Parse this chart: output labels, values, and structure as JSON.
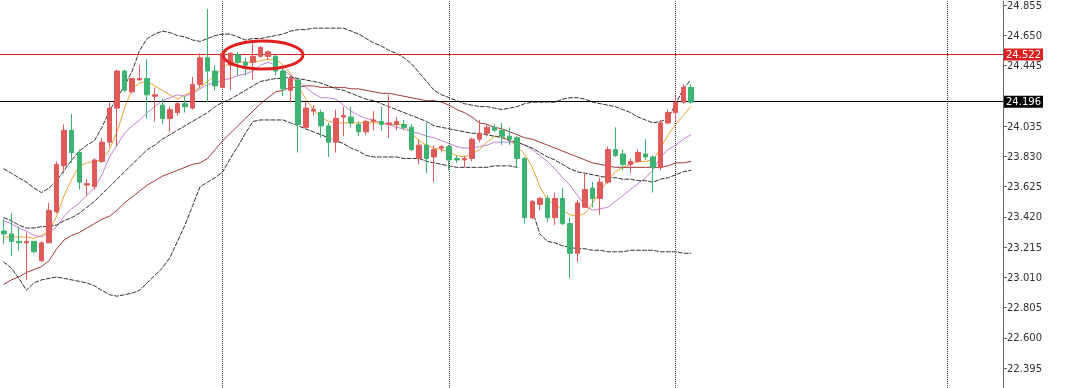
{
  "chart_data": {
    "type": "candlestick",
    "categories": [
      null,
      null,
      null,
      null,
      null,
      null,
      null,
      null,
      null,
      null,
      null,
      null,
      null,
      null,
      null,
      null,
      null,
      null,
      null,
      null,
      null,
      null,
      null,
      null,
      null,
      null,
      null,
      null,
      null,
      null,
      null,
      null,
      null,
      null,
      null,
      null,
      null,
      null,
      null,
      null,
      null,
      null,
      null,
      null,
      null,
      null,
      null,
      null,
      null,
      null,
      null,
      null,
      null,
      null,
      null,
      null,
      null,
      null,
      null,
      null,
      null,
      null,
      null,
      null,
      null,
      null,
      null,
      null,
      null,
      null,
      null,
      null,
      null,
      null,
      null,
      null,
      null,
      null,
      null,
      null,
      null,
      null,
      null,
      null,
      null,
      null,
      null,
      null,
      null,
      null,
      null,
      null
    ],
    "ylim": [
      22.26,
      24.88
    ],
    "yticks": [
      24.855,
      {
        "value": 24.65,
        "label": "24.650"
      },
      24.445,
      24.035,
      {
        "value": 23.83,
        "label": "23.830"
      },
      23.625,
      {
        "value": 23.42,
        "label": "23.420"
      },
      23.215,
      {
        "value": 23.01,
        "label": "23.010"
      },
      22.805,
      {
        "value": 22.6,
        "label": "22.600"
      },
      22.395
    ],
    "tick_labels": "y",
    "marker": "none",
    "series": [
      {
        "ohlc": [
          [
            23.32,
            23.4,
            23.23,
            23.3
          ],
          [
            23.3,
            23.44,
            23.15,
            23.25
          ],
          [
            23.25,
            23.35,
            23.19,
            23.24
          ],
          [
            23.24,
            23.31,
            22.99,
            23.25
          ],
          [
            23.25,
            23.25,
            23.17,
            23.18
          ],
          [
            23.12,
            23.25,
            23.11,
            23.24
          ],
          [
            23.24,
            23.51,
            23.24,
            23.46
          ],
          [
            23.45,
            23.79,
            23.44,
            23.77
          ],
          [
            23.76,
            24.04,
            23.71,
            24.0
          ],
          [
            24.0,
            24.11,
            23.78,
            23.85
          ],
          [
            23.85,
            23.87,
            23.6,
            23.65
          ],
          [
            23.63,
            23.67,
            23.56,
            23.64
          ],
          [
            23.62,
            23.81,
            23.6,
            23.8
          ],
          [
            23.79,
            23.95,
            23.78,
            23.92
          ],
          [
            23.92,
            24.19,
            23.89,
            24.15
          ],
          [
            24.15,
            24.41,
            23.89,
            24.4
          ],
          [
            24.4,
            24.41,
            24.26,
            24.27
          ],
          [
            24.26,
            24.35,
            24.25,
            24.35
          ],
          [
            24.34,
            24.44,
            24.34,
            24.35
          ],
          [
            24.35,
            24.48,
            24.08,
            24.24
          ],
          [
            24.23,
            24.29,
            24.06,
            24.24
          ],
          [
            24.17,
            24.21,
            24.04,
            24.08
          ],
          [
            24.08,
            24.16,
            23.99,
            24.14
          ],
          [
            24.12,
            24.19,
            24.1,
            24.18
          ],
          [
            24.18,
            24.23,
            24.12,
            24.16
          ],
          [
            24.15,
            24.36,
            24.14,
            24.31
          ],
          [
            24.31,
            24.52,
            24.29,
            24.49
          ],
          [
            24.49,
            24.82,
            24.19,
            24.4
          ],
          [
            24.4,
            24.44,
            24.27,
            24.3
          ],
          [
            24.29,
            24.54,
            24.29,
            24.52
          ],
          [
            24.44,
            24.53,
            24.27,
            24.52
          ],
          [
            24.51,
            24.53,
            24.37,
            24.46
          ],
          [
            24.46,
            24.49,
            24.37,
            24.44
          ],
          [
            24.46,
            24.6,
            24.34,
            24.5
          ],
          [
            24.5,
            24.57,
            24.49,
            24.56
          ],
          [
            24.5,
            24.54,
            24.48,
            24.53
          ],
          [
            24.5,
            24.51,
            24.37,
            24.4
          ],
          [
            24.4,
            24.42,
            24.23,
            24.28
          ],
          [
            24.27,
            24.37,
            24.19,
            24.35
          ],
          [
            24.34,
            24.35,
            23.85,
            24.04
          ],
          [
            24.02,
            24.19,
            24.02,
            24.15
          ],
          [
            24.13,
            24.17,
            24.1,
            24.14
          ],
          [
            24.12,
            24.14,
            23.95,
            24.03
          ],
          [
            24.03,
            24.05,
            23.82,
            23.92
          ],
          [
            23.92,
            24.14,
            23.85,
            24.08
          ],
          [
            24.09,
            24.16,
            23.96,
            24.1
          ],
          [
            24.09,
            24.16,
            24.02,
            24.05
          ],
          [
            24.04,
            24.06,
            23.96,
            23.99
          ],
          [
            23.99,
            24.07,
            23.97,
            24.06
          ],
          [
            24.06,
            24.13,
            24.0,
            24.07
          ],
          [
            24.06,
            24.16,
            24.0,
            24.04
          ],
          [
            24.04,
            24.24,
            23.95,
            24.05
          ],
          [
            24.04,
            24.09,
            24.0,
            24.06
          ],
          [
            24.04,
            24.07,
            24.0,
            24.02
          ],
          [
            24.02,
            24.04,
            23.86,
            23.87
          ],
          [
            23.81,
            23.94,
            23.77,
            23.9
          ],
          [
            23.9,
            24.05,
            23.71,
            23.81
          ],
          [
            23.82,
            23.9,
            23.65,
            23.87
          ],
          [
            23.88,
            23.9,
            23.85,
            23.89
          ],
          [
            23.89,
            23.9,
            23.73,
            23.8
          ],
          [
            23.81,
            23.83,
            23.78,
            23.8
          ],
          [
            23.8,
            23.83,
            23.75,
            23.81
          ],
          [
            23.81,
            23.95,
            23.79,
            23.94
          ],
          [
            23.94,
            24.07,
            23.92,
            23.98
          ],
          [
            23.98,
            24.04,
            23.96,
            24.02
          ],
          [
            24.02,
            24.04,
            23.99,
            24.0
          ],
          [
            24.0,
            24.05,
            23.9,
            23.96
          ],
          [
            23.96,
            24.02,
            23.9,
            23.94
          ],
          [
            23.95,
            23.96,
            23.75,
            23.81
          ],
          [
            23.81,
            23.82,
            23.37,
            23.41
          ],
          [
            23.41,
            23.53,
            23.4,
            23.52
          ],
          [
            23.5,
            23.55,
            23.46,
            23.54
          ],
          [
            23.54,
            23.56,
            23.38,
            23.41
          ],
          [
            23.41,
            23.58,
            23.36,
            23.54
          ],
          [
            23.54,
            23.61,
            23.36,
            23.37
          ],
          [
            23.37,
            23.41,
            23.0,
            23.17
          ],
          [
            23.17,
            23.53,
            23.11,
            23.51
          ],
          [
            23.48,
            23.71,
            23.48,
            23.6
          ],
          [
            23.61,
            23.65,
            23.48,
            23.54
          ],
          [
            23.54,
            23.68,
            23.43,
            23.65
          ],
          [
            23.65,
            23.89,
            23.64,
            23.87
          ],
          [
            23.87,
            24.02,
            23.82,
            23.83
          ],
          [
            23.84,
            23.87,
            23.73,
            23.77
          ],
          [
            23.77,
            23.81,
            23.71,
            23.79
          ],
          [
            23.79,
            23.87,
            23.78,
            23.85
          ],
          [
            23.84,
            23.94,
            23.8,
            23.82
          ],
          [
            23.82,
            23.83,
            23.58,
            23.75
          ],
          [
            23.75,
            24.07,
            23.73,
            24.05
          ],
          [
            24.05,
            24.14,
            24.04,
            24.12
          ],
          [
            24.12,
            24.23,
            24.06,
            24.19
          ],
          [
            24.19,
            24.31,
            24.18,
            24.29
          ],
          [
            24.29,
            24.31,
            24.18,
            24.19
          ]
        ],
        "colors": [
          "#3cb371",
          "#3cb371",
          "#3cb371",
          "#e05a5a",
          "#3cb371",
          "#e05a5a",
          "#e05a5a",
          "#e05a5a",
          "#e05a5a",
          "#3cb371",
          "#3cb371",
          "#e05a5a",
          "#e05a5a",
          "#e05a5a",
          "#e05a5a",
          "#e05a5a",
          "#3cb371",
          "#e05a5a",
          "#e05a5a",
          "#3cb371",
          "#e05a5a",
          "#3cb371",
          "#e05a5a",
          "#e05a5a",
          "#3cb371",
          "#e05a5a",
          "#e05a5a",
          "#3cb371",
          "#3cb371",
          "#e05a5a",
          "#e05a5a",
          "#3cb371",
          "#3cb371",
          "#e05a5a",
          "#e05a5a",
          "#e05a5a",
          "#3cb371",
          "#3cb371",
          "#e05a5a",
          "#3cb371",
          "#e05a5a",
          "#e05a5a",
          "#3cb371",
          "#3cb371",
          "#e05a5a",
          "#e05a5a",
          "#3cb371",
          "#3cb371",
          "#e05a5a",
          "#e05a5a",
          "#3cb371",
          "#e05a5a",
          "#e05a5a",
          "#3cb371",
          "#3cb371",
          "#e05a5a",
          "#3cb371",
          "#e05a5a",
          "#e05a5a",
          "#3cb371",
          "#3cb371",
          "#e05a5a",
          "#e05a5a",
          "#e05a5a",
          "#e05a5a",
          "#3cb371",
          "#3cb371",
          "#3cb371",
          "#3cb371",
          "#3cb371",
          "#e05a5a",
          "#e05a5a",
          "#3cb371",
          "#e05a5a",
          "#3cb371",
          "#3cb371",
          "#e05a5a",
          "#e05a5a",
          "#3cb371",
          "#e05a5a",
          "#e05a5a",
          "#3cb371",
          "#3cb371",
          "#e05a5a",
          "#e05a5a",
          "#3cb371",
          "#3cb371",
          "#e05a5a",
          "#e05a5a",
          "#e05a5a",
          "#e05a5a",
          "#3cb371"
        ]
      },
      {
        "type": "line",
        "color": "#f0a030",
        "line_style": "solid",
        "values": [
          23.28,
          23.28,
          23.28,
          23.28,
          23.27,
          23.29,
          23.32,
          23.42,
          23.56,
          23.67,
          23.76,
          23.78,
          23.79,
          23.8,
          23.87,
          23.99,
          24.15,
          24.28,
          24.32,
          24.33,
          24.3,
          24.27,
          24.24,
          24.21,
          24.24,
          24.26,
          24.29,
          24.33,
          24.37,
          24.42,
          24.46,
          24.46,
          24.46,
          24.46,
          24.47,
          24.48,
          24.48,
          24.44,
          24.38,
          24.3,
          24.21,
          24.14,
          24.09,
          24.06,
          24.05,
          24.05,
          24.05,
          24.05,
          24.05,
          24.05,
          24.05,
          24.04,
          24.04,
          24.04,
          23.98,
          23.93,
          23.9,
          23.88,
          23.87,
          23.85,
          23.83,
          23.82,
          23.84,
          23.87,
          23.92,
          23.96,
          23.96,
          23.93,
          23.89,
          23.84,
          23.75,
          23.62,
          23.53,
          23.5,
          23.46,
          23.43,
          23.42,
          23.44,
          23.51,
          23.59,
          23.66,
          23.72,
          23.75,
          23.77,
          23.79,
          23.79,
          23.8,
          23.88,
          23.97,
          24.04,
          24.1,
          24.16
        ]
      },
      {
        "type": "line",
        "color": "#c080d0",
        "line_style": "solid",
        "values": [
          23.39,
          23.37,
          23.34,
          23.32,
          23.29,
          23.28,
          23.31,
          23.35,
          23.42,
          23.47,
          23.51,
          23.56,
          23.61,
          23.7,
          23.82,
          23.9,
          23.98,
          24.03,
          24.07,
          24.12,
          24.16,
          24.2,
          24.22,
          24.24,
          24.23,
          24.25,
          24.28,
          24.31,
          24.32,
          24.34,
          24.35,
          24.37,
          24.38,
          24.4,
          24.44,
          24.46,
          24.44,
          24.41,
          24.37,
          24.33,
          24.29,
          24.25,
          24.22,
          24.22,
          24.21,
          24.17,
          24.13,
          24.1,
          24.08,
          24.07,
          24.05,
          24.04,
          24.02,
          24.01,
          23.99,
          23.98,
          23.96,
          23.95,
          23.93,
          23.91,
          23.89,
          23.88,
          23.88,
          23.89,
          23.9,
          23.92,
          23.92,
          23.92,
          23.92,
          23.9,
          23.87,
          23.83,
          23.79,
          23.74,
          23.68,
          23.63,
          23.56,
          23.49,
          23.46,
          23.47,
          23.48,
          23.52,
          23.56,
          23.6,
          23.64,
          23.68,
          23.73,
          23.82,
          23.87,
          23.9,
          23.94,
          23.97
        ]
      },
      {
        "type": "line",
        "color": "#a03a3a",
        "line_style": "solid",
        "values": [
          22.96,
          22.99,
          23.01,
          23.04,
          23.06,
          23.08,
          23.12,
          23.2,
          23.26,
          23.29,
          23.31,
          23.34,
          23.37,
          23.4,
          23.42,
          23.46,
          23.51,
          23.55,
          23.59,
          23.63,
          23.66,
          23.69,
          23.71,
          23.73,
          23.75,
          23.77,
          23.78,
          23.81,
          23.87,
          23.93,
          23.98,
          24.03,
          24.08,
          24.13,
          24.18,
          24.22,
          24.26,
          24.27,
          24.29,
          24.29,
          24.3,
          24.3,
          24.29,
          24.29,
          24.29,
          24.29,
          24.28,
          24.28,
          24.27,
          24.26,
          24.25,
          24.25,
          24.24,
          24.23,
          24.22,
          24.21,
          24.2,
          24.2,
          24.19,
          24.17,
          24.14,
          24.12,
          24.09,
          24.05,
          24.04,
          24.02,
          24.01,
          23.99,
          23.97,
          23.95,
          23.94,
          23.92,
          23.9,
          23.88,
          23.86,
          23.84,
          23.82,
          23.8,
          23.78,
          23.77,
          23.76,
          23.75,
          23.75,
          23.75,
          23.75,
          23.75,
          23.75,
          23.75,
          23.76,
          23.78,
          23.78,
          23.79
        ]
      },
      {
        "type": "line",
        "color": "#333333",
        "line_style": "dashed",
        "values": [
          23.74,
          23.71,
          23.68,
          23.65,
          23.61,
          23.58,
          23.61,
          23.66,
          23.73,
          23.8,
          23.86,
          23.9,
          23.93,
          24.02,
          24.13,
          24.22,
          24.3,
          24.4,
          24.54,
          24.62,
          24.65,
          24.67,
          24.66,
          24.64,
          24.63,
          24.61,
          24.6,
          24.62,
          24.64,
          24.65,
          24.65,
          24.63,
          24.61,
          24.62,
          24.62,
          24.63,
          24.64,
          24.65,
          24.67,
          24.68,
          24.68,
          24.69,
          24.69,
          24.69,
          24.69,
          24.69,
          24.67,
          24.65,
          24.62,
          24.59,
          24.57,
          24.54,
          24.52,
          24.49,
          24.45,
          24.39,
          24.33,
          24.27,
          24.24,
          24.22,
          24.2,
          24.18,
          24.17,
          24.16,
          24.16,
          24.15,
          24.14,
          24.15,
          24.16,
          24.18,
          24.19,
          24.19,
          24.19,
          24.19,
          24.21,
          24.22,
          24.22,
          24.21,
          24.19,
          24.18,
          24.17,
          24.16,
          24.14,
          24.12,
          24.09,
          24.07,
          24.05,
          24.06,
          24.08,
          24.18,
          24.28,
          24.34
        ]
      },
      {
        "type": "line",
        "color": "#333333",
        "line_style": "dashed",
        "values": [
          23.41,
          23.39,
          23.36,
          23.34,
          23.34,
          23.35,
          23.35,
          23.36,
          23.39,
          23.41,
          23.44,
          23.48,
          23.52,
          23.57,
          23.62,
          23.67,
          23.72,
          23.77,
          23.82,
          23.87,
          23.9,
          23.94,
          23.97,
          24.0,
          24.03,
          24.06,
          24.09,
          24.12,
          24.16,
          24.19,
          24.21,
          24.24,
          24.27,
          24.3,
          24.33,
          24.34,
          24.35,
          24.35,
          24.36,
          24.35,
          24.34,
          24.33,
          24.32,
          24.3,
          24.28,
          24.27,
          24.25,
          24.23,
          24.21,
          24.2,
          24.18,
          24.16,
          24.14,
          24.12,
          24.1,
          24.08,
          24.06,
          24.03,
          24.02,
          24.01,
          24.0,
          23.99,
          23.98,
          23.98,
          23.97,
          23.96,
          23.95,
          23.93,
          23.92,
          23.9,
          23.88,
          23.85,
          23.82,
          23.8,
          23.77,
          23.74,
          23.72,
          23.71,
          23.7,
          23.69,
          23.68,
          23.68,
          23.67,
          23.67,
          23.66,
          23.66,
          23.65,
          23.67,
          23.68,
          23.7,
          23.72,
          23.73
        ]
      },
      {
        "type": "line",
        "color": "#333333",
        "line_style": "dashed",
        "values": [
          23.11,
          23.07,
          23.0,
          22.92,
          22.97,
          22.99,
          23.0,
          23.01,
          23.0,
          22.99,
          22.98,
          22.97,
          22.95,
          22.92,
          22.89,
          22.88,
          22.89,
          22.9,
          22.92,
          22.97,
          23.02,
          23.07,
          23.14,
          23.25,
          23.36,
          23.49,
          23.62,
          23.65,
          23.68,
          23.72,
          23.81,
          23.89,
          23.98,
          24.06,
          24.07,
          24.07,
          24.07,
          24.07,
          24.05,
          24.03,
          24.01,
          23.99,
          23.97,
          23.95,
          23.93,
          23.91,
          23.88,
          23.86,
          23.83,
          23.82,
          23.82,
          23.82,
          23.82,
          23.81,
          23.81,
          23.81,
          23.79,
          23.78,
          23.77,
          23.76,
          23.75,
          23.75,
          23.75,
          23.75,
          23.75,
          23.76,
          23.76,
          23.76,
          23.75,
          null,
          23.46,
          23.3,
          23.25,
          23.24,
          23.22,
          23.21,
          23.2,
          23.2,
          23.19,
          23.19,
          23.18,
          23.18,
          23.18,
          23.19,
          23.19,
          23.19,
          23.19,
          23.18,
          23.18,
          23.18,
          23.17,
          23.17
        ]
      }
    ],
    "ref_lines": [
      {
        "axis": "y",
        "value": 24.522,
        "label": "24.522",
        "color": "#e02020",
        "line_style": "solid"
      },
      {
        "axis": "y",
        "value": 24.196,
        "label": "24.196",
        "color": "#000000",
        "line_style": "solid"
      }
    ],
    "grid": "x"
  }
}
